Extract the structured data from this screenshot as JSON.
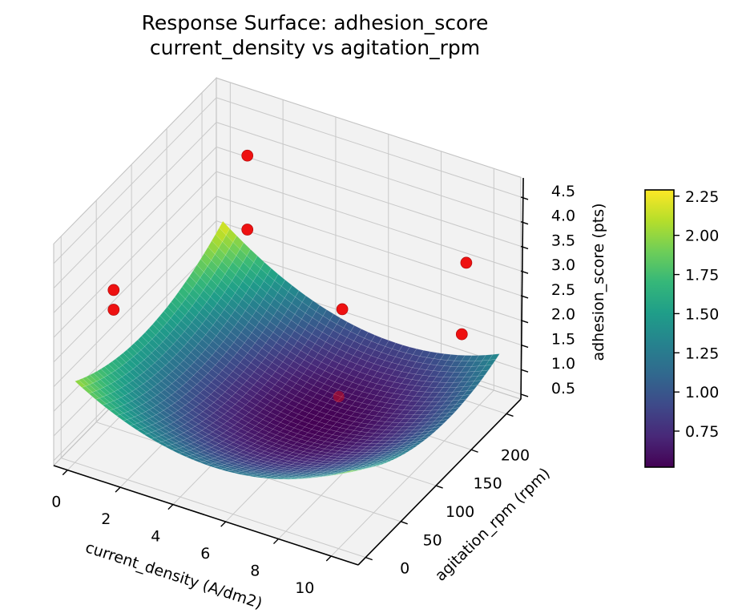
{
  "title": {
    "line1": "Response Surface: adhesion_score",
    "line2": "current_density vs agitation_rpm"
  },
  "colors": {
    "scatter": "#ee1111",
    "scatter_edge": "#b00d0d",
    "pane": "#f2f2f2",
    "grid": "#c9c9c9",
    "pane_edge": "#c2c2c2",
    "axis": "#000000",
    "colormap_name": "viridis",
    "viridis_stops": [
      "#440154",
      "#482878",
      "#3e4989",
      "#31688e",
      "#26828e",
      "#1f9e89",
      "#35b779",
      "#6ece58",
      "#b5de2b",
      "#fde725"
    ]
  },
  "chart_data": {
    "type": "surface3d",
    "title": "Response Surface: adhesion_score\ncurrent_density vs agitation_rpm",
    "xlabel": "current_density (A/dm2)",
    "ylabel": "agitation_rpm (rpm)",
    "zlabel": "adhesion_score (pts)",
    "x_ticks": [
      0,
      2,
      4,
      6,
      8,
      10
    ],
    "y_ticks": [
      0,
      50,
      100,
      150,
      200
    ],
    "z_ticks": [
      0.5,
      1.0,
      1.5,
      2.0,
      2.5,
      3.0,
      3.5,
      4.0,
      4.5
    ],
    "xlim": [
      -0.525,
      11.025
    ],
    "ylim": [
      -10.5,
      220.5
    ],
    "zlim": [
      0.4,
      4.9
    ],
    "grid": true,
    "view": {
      "elev": 30,
      "azim": -60
    },
    "surface": {
      "x_range": [
        0,
        10.5
      ],
      "y_range": [
        0,
        210
      ],
      "grid_n": 40,
      "model": "z = z0 + a*(x-x0)^2 + b*(y-y0)^2 + c*(x-x0)*(y-y0)",
      "params": {
        "z0": 0.52,
        "a": 0.0305,
        "b": 5e-05,
        "c": -0.0004,
        "x0": 6,
        "y0": 120
      },
      "z_min": 0.52,
      "z_max": 2.29
    },
    "scatter_points": [
      {
        "x": 2,
        "y": 170,
        "z": 4.5
      },
      {
        "x": 2,
        "y": 170,
        "z": 3.0
      },
      {
        "x": 0,
        "y": 55,
        "z": 3.1
      },
      {
        "x": 0,
        "y": 55,
        "z": 2.7
      },
      {
        "x": 9.5,
        "y": 200,
        "z": 3.2
      },
      {
        "x": 6,
        "y": 155,
        "z": 2.3
      },
      {
        "x": 10,
        "y": 175,
        "z": 2.2
      },
      {
        "x": 6,
        "y": 150,
        "z": 0.6,
        "dimmed": true
      }
    ],
    "colorbar": {
      "position": "right",
      "vmin": 0.52,
      "vmax": 2.29,
      "ticks": [
        0.75,
        1.0,
        1.25,
        1.5,
        1.75,
        2.0,
        2.25
      ]
    }
  }
}
